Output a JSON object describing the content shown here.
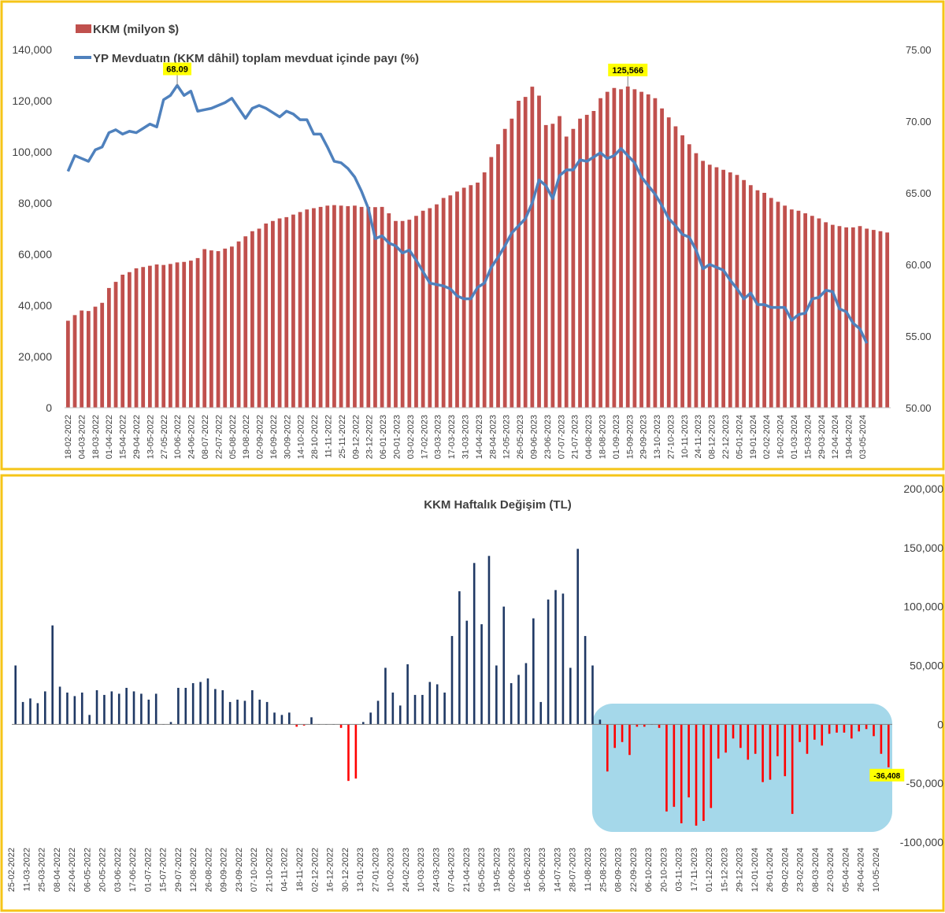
{
  "colors": {
    "frame": "#f5c518",
    "bar_top": "#c0504d",
    "line_top": "#4f81bd",
    "bar_positive": "#1f3864",
    "bar_negative": "#ff0000",
    "highlight_fill": "#a5d8ea",
    "callout_fill": "#ffff00",
    "axis_text": "#404040"
  },
  "chart_data": [
    {
      "type": "bar+line",
      "title": "",
      "legend_position": "top-left",
      "bar_series": {
        "name": "KKM (milyon $)",
        "values": [
          34000,
          36200,
          38000,
          37800,
          39500,
          41000,
          46800,
          49200,
          52000,
          53000,
          54500,
          55000,
          55500,
          56000,
          55800,
          56200,
          56800,
          57000,
          57500,
          58500,
          62000,
          61500,
          61200,
          62200,
          63000,
          65000,
          67000,
          69000,
          70000,
          72000,
          73000,
          74000,
          74500,
          75500,
          76500,
          77500,
          78000,
          78500,
          79000,
          79200,
          79000,
          78800,
          79000,
          78500,
          78500,
          78400,
          78500,
          76000,
          73000,
          73000,
          73500,
          75000,
          77000,
          78000,
          79500,
          82000,
          83000,
          84500,
          86000,
          87000,
          88000,
          92000,
          98000,
          103000,
          109000,
          113000,
          120000,
          121500,
          125500,
          122000,
          110500,
          111000,
          114000,
          106000,
          109000,
          113000,
          114500,
          116000,
          121000,
          123500,
          125000,
          124500,
          125566,
          124500,
          123500,
          122500,
          121000,
          117000,
          113500,
          110000,
          106500,
          103000,
          99500,
          96500,
          95000,
          94000,
          93000,
          92000,
          91000,
          89000,
          87000,
          85000,
          84000,
          82000,
          80500,
          79000,
          77500,
          77000,
          76000,
          75000,
          74000,
          72500,
          71500,
          71000,
          70500,
          70500,
          71000,
          70000,
          69500,
          69000,
          68500
        ],
        "callout": "125,566"
      },
      "line_series": {
        "name": "YP Mevduatın (KKM dâhil) toplam mevduat içinde payı (%)",
        "values": [
          66.5,
          67.6,
          67.4,
          67.2,
          68.0,
          68.2,
          69.2,
          69.4,
          69.1,
          69.3,
          69.2,
          69.5,
          69.8,
          69.6,
          71.5,
          71.8,
          72.5,
          71.8,
          72.1,
          70.7,
          70.8,
          70.9,
          71.1,
          71.3,
          71.6,
          70.9,
          70.2,
          70.9,
          71.1,
          70.9,
          70.6,
          70.3,
          70.7,
          70.5,
          70.1,
          70.1,
          69.1,
          69.1,
          68.2,
          67.2,
          67.1,
          66.7,
          66.1,
          65.1,
          63.9,
          61.8,
          62.0,
          61.5,
          61.3,
          60.8,
          61.0,
          60.3,
          59.5,
          58.7,
          58.6,
          58.5,
          58.3,
          57.8,
          57.6,
          57.6,
          58.4,
          58.7,
          59.8,
          60.5,
          61.3,
          62.2,
          62.7,
          63.2,
          64.3,
          65.9,
          65.5,
          64.6,
          66.2,
          66.6,
          66.6,
          67.3,
          67.2,
          67.5,
          67.8,
          67.4,
          67.6,
          68.09,
          67.6,
          67.1,
          66.1,
          65.5,
          64.9,
          64.1,
          63.2,
          62.7,
          62.1,
          61.9,
          61.0,
          59.7,
          60.0,
          59.8,
          59.6,
          58.9,
          58.3,
          57.6,
          58.0,
          57.2,
          57.2,
          57.0,
          57.0,
          57.0,
          56.1,
          56.5,
          56.6,
          57.6,
          57.7,
          58.2,
          58.1,
          56.9,
          56.7,
          55.9,
          55.5,
          54.5
        ],
        "callout": "68.09"
      },
      "left_axis": {
        "min": 0,
        "max": 140000,
        "ticks": [
          "0",
          "20,000",
          "40,000",
          "60,000",
          "80,000",
          "100,000",
          "120,000",
          "140,000"
        ]
      },
      "right_axis": {
        "min": 50,
        "max": 75,
        "ticks": [
          "50.00",
          "55.00",
          "60.00",
          "65.00",
          "70.00",
          "75.00"
        ]
      },
      "x_tick_labels": [
        "18-02-2022",
        "04-03-2022",
        "18-03-2022",
        "01-04-2022",
        "15-04-2022",
        "29-04-2022",
        "13-05-2022",
        "27-05-2022",
        "10-06-2022",
        "24-06-2022",
        "08-07-2022",
        "22-07-2022",
        "05-08-2022",
        "19-08-2022",
        "02-09-2022",
        "16-09-2022",
        "30-09-2022",
        "14-10-2022",
        "28-10-2022",
        "11-11-2022",
        "25-11-2022",
        "09-12-2022",
        "23-12-2022",
        "06-01-2023",
        "20-01-2023",
        "03-02-2023",
        "17-02-2023",
        "03-03-2023",
        "17-03-2023",
        "31-03-2023",
        "14-04-2023",
        "28-04-2023",
        "12-05-2023",
        "26-05-2023",
        "09-06-2023",
        "23-06-2023",
        "07-07-2023",
        "21-07-2023",
        "04-08-2023",
        "18-08-2023",
        "01-09-2023",
        "15-09-2023",
        "29-09-2023",
        "13-10-2023",
        "27-10-2023",
        "10-11-2023",
        "24-11-2023",
        "08-12-2023",
        "22-12-2023",
        "05-01-2024",
        "19-01-2024",
        "02-02-2024",
        "16-02-2024",
        "01-03-2024",
        "15-03-2024",
        "29-03-2024",
        "12-04-2024",
        "19-04-2024",
        "03-05-2024"
      ]
    },
    {
      "type": "bar",
      "title": "KKM Haftalık Değişim (TL)",
      "values": [
        50000,
        19000,
        22000,
        18000,
        28000,
        84000,
        32000,
        27000,
        24000,
        27000,
        8000,
        29000,
        25000,
        28000,
        26000,
        31000,
        28000,
        26000,
        21000,
        26000,
        0,
        2000,
        31000,
        31000,
        35000,
        36000,
        39000,
        30000,
        29000,
        19000,
        21000,
        20000,
        29000,
        21000,
        19000,
        10000,
        8000,
        10000,
        -2000,
        -1000,
        6000,
        0,
        0,
        0,
        -3000,
        -48000,
        -46000,
        2000,
        10000,
        20000,
        48000,
        27000,
        16000,
        51000,
        25000,
        25000,
        36000,
        34000,
        27000,
        75000,
        113000,
        88000,
        137000,
        85000,
        143000,
        50000,
        100000,
        35000,
        42000,
        52000,
        90000,
        19000,
        106000,
        114000,
        111000,
        48000,
        149000,
        75000,
        50000,
        4000,
        -40000,
        -20000,
        -15000,
        -26000,
        -2000,
        -2000,
        0,
        -3000,
        -74000,
        -70000,
        -84000,
        -62000,
        -86000,
        -82000,
        -71000,
        -29000,
        -24000,
        -12000,
        -20000,
        -30000,
        -25000,
        -49000,
        -47000,
        -27000,
        -44000,
        -76000,
        -15000,
        -25000,
        -13000,
        -18000,
        -8000,
        -7000,
        -7000,
        -12000,
        -6000,
        -4000,
        -10000,
        -25000,
        -36408
      ],
      "callout": "-36,408",
      "y_axis": {
        "min": -100000,
        "max": 200000,
        "ticks": [
          "-100,000",
          "-50,000",
          "0",
          "50,000",
          "100,000",
          "150,000",
          "200,000"
        ]
      },
      "highlight_region": "25-08-2023 to 10-05-2024",
      "x_tick_labels": [
        "25-02-2022",
        "11-03-2022",
        "25-03-2022",
        "08-04-2022",
        "22-04-2022",
        "06-05-2022",
        "20-05-2022",
        "03-06-2022",
        "17-06-2022",
        "01-07-2022",
        "15-07-2022",
        "29-07-2022",
        "12-08-2022",
        "26-08-2022",
        "09-09-2022",
        "23-09-2022",
        "07-10-2022",
        "21-10-2022",
        "04-11-2022",
        "18-11-2022",
        "02-12-2022",
        "16-12-2022",
        "30-12-2022",
        "13-01-2023",
        "27-01-2023",
        "10-02-2023",
        "24-02-2023",
        "10-03-2023",
        "24-03-2023",
        "07-04-2023",
        "21-04-2023",
        "05-05-2023",
        "19-05-2023",
        "02-06-2023",
        "16-06-2023",
        "30-06-2023",
        "14-07-2023",
        "28-07-2023",
        "11-08-2023",
        "25-08-2023",
        "08-09-2023",
        "22-09-2023",
        "06-10-2023",
        "20-10-2023",
        "03-11-2023",
        "17-11-2023",
        "01-12-2023",
        "15-12-2023",
        "29-12-2023",
        "12-01-2024",
        "26-01-2024",
        "09-02-2024",
        "23-02-2024",
        "08-03-2024",
        "22-03-2024",
        "05-04-2024",
        "26-04-2024",
        "10-05-2024"
      ]
    }
  ]
}
